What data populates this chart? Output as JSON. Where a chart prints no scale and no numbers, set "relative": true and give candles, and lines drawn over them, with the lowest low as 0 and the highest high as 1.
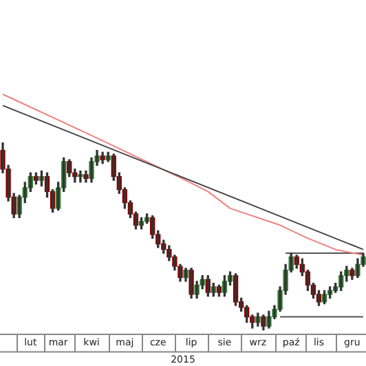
{
  "chart_data": {
    "type": "candlestick",
    "relative": true,
    "xlabel": "2015",
    "marker": "none",
    "color": "#333333",
    "categories": [
      null,
      null,
      null,
      null,
      null,
      "lut",
      null,
      null,
      null,
      null,
      "mar",
      null,
      null,
      null,
      null,
      null,
      "kwi",
      null,
      null,
      null,
      null,
      null,
      "maj",
      null,
      null,
      null,
      null,
      null,
      "cze",
      null,
      null,
      null,
      null,
      null,
      "lip",
      null,
      null,
      null,
      null,
      null,
      "sie",
      null,
      null,
      null,
      null,
      null,
      "wrz",
      null,
      null,
      null,
      null,
      null,
      "paź",
      null,
      null,
      null,
      null,
      "lis",
      null,
      null,
      null,
      null,
      null,
      "gru",
      null,
      null
    ],
    "ohlc": [
      [
        0.96,
        1.0,
        0.84,
        0.86
      ],
      [
        0.86,
        0.88,
        0.69,
        0.71
      ],
      [
        0.71,
        0.73,
        0.6,
        0.62
      ],
      [
        0.62,
        0.72,
        0.6,
        0.71
      ],
      [
        0.71,
        0.79,
        0.68,
        0.76
      ],
      [
        0.76,
        0.84,
        0.74,
        0.82
      ],
      [
        0.82,
        0.84,
        0.78,
        0.8
      ],
      [
        0.8,
        0.85,
        0.77,
        0.82
      ],
      [
        0.82,
        0.84,
        0.71,
        0.74
      ],
      [
        0.74,
        0.75,
        0.63,
        0.65
      ],
      [
        0.65,
        0.79,
        0.64,
        0.76
      ],
      [
        0.76,
        0.92,
        0.74,
        0.9
      ],
      [
        0.9,
        0.91,
        0.82,
        0.84
      ],
      [
        0.84,
        0.86,
        0.79,
        0.82
      ],
      [
        0.82,
        0.85,
        0.79,
        0.83
      ],
      [
        0.83,
        0.85,
        0.79,
        0.81
      ],
      [
        0.81,
        0.92,
        0.79,
        0.9
      ],
      [
        0.9,
        0.96,
        0.88,
        0.93
      ],
      [
        0.93,
        0.95,
        0.89,
        0.91
      ],
      [
        0.91,
        0.95,
        0.9,
        0.93
      ],
      [
        0.93,
        0.94,
        0.8,
        0.82
      ],
      [
        0.82,
        0.84,
        0.73,
        0.75
      ],
      [
        0.75,
        0.76,
        0.65,
        0.68
      ],
      [
        0.68,
        0.69,
        0.6,
        0.62
      ],
      [
        0.62,
        0.63,
        0.54,
        0.56
      ],
      [
        0.56,
        0.6,
        0.54,
        0.58
      ],
      [
        0.58,
        0.62,
        0.57,
        0.6
      ],
      [
        0.6,
        0.61,
        0.49,
        0.51
      ],
      [
        0.51,
        0.53,
        0.44,
        0.46
      ],
      [
        0.46,
        0.48,
        0.41,
        0.43
      ],
      [
        0.43,
        0.45,
        0.37,
        0.39
      ],
      [
        0.39,
        0.4,
        0.32,
        0.34
      ],
      [
        0.34,
        0.35,
        0.26,
        0.28
      ],
      [
        0.28,
        0.33,
        0.26,
        0.32
      ],
      [
        0.32,
        0.33,
        0.17,
        0.19
      ],
      [
        0.19,
        0.26,
        0.17,
        0.24
      ],
      [
        0.24,
        0.29,
        0.22,
        0.27
      ],
      [
        0.27,
        0.29,
        0.18,
        0.2
      ],
      [
        0.2,
        0.25,
        0.18,
        0.23
      ],
      [
        0.23,
        0.24,
        0.18,
        0.2
      ],
      [
        0.2,
        0.29,
        0.18,
        0.26
      ],
      [
        0.26,
        0.31,
        0.24,
        0.29
      ],
      [
        0.29,
        0.3,
        0.13,
        0.15
      ],
      [
        0.15,
        0.17,
        0.1,
        0.12
      ],
      [
        0.12,
        0.13,
        0.04,
        0.07
      ],
      [
        0.07,
        0.08,
        0.01,
        0.04
      ],
      [
        0.04,
        0.09,
        0.02,
        0.07
      ],
      [
        0.07,
        0.08,
        0.0,
        0.02
      ],
      [
        0.02,
        0.1,
        0.01,
        0.07
      ],
      [
        0.07,
        0.13,
        0.06,
        0.11
      ],
      [
        0.11,
        0.23,
        0.1,
        0.21
      ],
      [
        0.21,
        0.35,
        0.19,
        0.32
      ],
      [
        0.32,
        0.41,
        0.31,
        0.39
      ],
      [
        0.39,
        0.4,
        0.33,
        0.35
      ],
      [
        0.35,
        0.38,
        0.29,
        0.31
      ],
      [
        0.31,
        0.32,
        0.21,
        0.24
      ],
      [
        0.24,
        0.25,
        0.17,
        0.19
      ],
      [
        0.19,
        0.21,
        0.13,
        0.15
      ],
      [
        0.15,
        0.21,
        0.14,
        0.19
      ],
      [
        0.19,
        0.23,
        0.17,
        0.21
      ],
      [
        0.21,
        0.25,
        0.2,
        0.23
      ],
      [
        0.23,
        0.31,
        0.21,
        0.29
      ],
      [
        0.29,
        0.34,
        0.26,
        0.32
      ],
      [
        0.32,
        0.33,
        0.27,
        0.29
      ],
      [
        0.29,
        0.38,
        0.28,
        0.35
      ],
      [
        0.35,
        0.41,
        0.34,
        0.39
      ]
    ],
    "colors": [
      "#8b0000",
      "#8b0000",
      "#8b0000",
      "#2e7d32",
      "#2e7d32",
      "#2e7d32",
      "#8b0000",
      "#2e7d32",
      "#8b0000",
      "#8b0000",
      "#2e7d32",
      "#2e7d32",
      "#8b0000",
      "#8b0000",
      "#2e7d32",
      "#8b0000",
      "#2e7d32",
      "#2e7d32",
      "#8b0000",
      "#2e7d32",
      "#8b0000",
      "#8b0000",
      "#8b0000",
      "#8b0000",
      "#8b0000",
      "#2e7d32",
      "#2e7d32",
      "#8b0000",
      "#8b0000",
      "#8b0000",
      "#8b0000",
      "#8b0000",
      "#8b0000",
      "#2e7d32",
      "#8b0000",
      "#2e7d32",
      "#2e7d32",
      "#8b0000",
      "#2e7d32",
      "#8b0000",
      "#2e7d32",
      "#2e7d32",
      "#8b0000",
      "#8b0000",
      "#8b0000",
      "#8b0000",
      "#2e7d32",
      "#8b0000",
      "#2e7d32",
      "#2e7d32",
      "#2e7d32",
      "#2e7d32",
      "#2e7d32",
      "#8b0000",
      "#8b0000",
      "#8b0000",
      "#8b0000",
      "#8b0000",
      "#2e7d32",
      "#2e7d32",
      "#2e7d32",
      "#2e7d32",
      "#2e7d32",
      "#8b0000",
      "#2e7d32",
      "#2e7d32"
    ],
    "series": [
      {
        "type": "line",
        "color": "#444444",
        "values": [
          1.2,
          null,
          null,
          null,
          null,
          null,
          null,
          null,
          null,
          null,
          null,
          null,
          null,
          null,
          null,
          null,
          null,
          null,
          null,
          null,
          null,
          null,
          null,
          null,
          null,
          null,
          null,
          null,
          null,
          null,
          null,
          null,
          null,
          null,
          null,
          null,
          null,
          null,
          null,
          null,
          null,
          null,
          null,
          null,
          null,
          null,
          null,
          null,
          null,
          null,
          null,
          null,
          null,
          null,
          null,
          null,
          null,
          null,
          null,
          null,
          null,
          null,
          null,
          null,
          null,
          0.43
        ]
      },
      {
        "type": "line",
        "color": "#f08080",
        "values": [
          1.26,
          null,
          null,
          null,
          null,
          null,
          null,
          null,
          null,
          null,
          null,
          null,
          null,
          null,
          null,
          null,
          1.04,
          null,
          null,
          null,
          null,
          null,
          null,
          null,
          null,
          null,
          null,
          null,
          null,
          null,
          null,
          null,
          null,
          0.8,
          null,
          null,
          null,
          0.74,
          null,
          null,
          null,
          0.65,
          null,
          null,
          null,
          null,
          null,
          null,
          null,
          null,
          0.56,
          null,
          null,
          null,
          null,
          0.49,
          null,
          null,
          null,
          null,
          0.43,
          null,
          null,
          null,
          null,
          0.4
        ]
      },
      {
        "type": "line",
        "color": "#555555",
        "values": [
          null,
          null,
          null,
          null,
          null,
          null,
          null,
          null,
          null,
          null,
          null,
          null,
          null,
          null,
          null,
          null,
          null,
          null,
          null,
          null,
          null,
          null,
          null,
          null,
          null,
          null,
          null,
          null,
          null,
          null,
          null,
          null,
          null,
          null,
          null,
          null,
          null,
          null,
          null,
          null,
          null,
          null,
          null,
          null,
          null,
          null,
          null,
          null,
          null,
          null,
          null,
          0.41,
          null,
          null,
          null,
          null,
          null,
          null,
          null,
          null,
          null,
          null,
          null,
          null,
          null,
          0.41
        ]
      },
      {
        "type": "line",
        "color": "#555555",
        "values": [
          null,
          null,
          null,
          null,
          null,
          null,
          null,
          null,
          null,
          null,
          null,
          null,
          null,
          null,
          null,
          null,
          null,
          null,
          null,
          null,
          null,
          null,
          null,
          null,
          null,
          null,
          null,
          null,
          null,
          null,
          null,
          null,
          null,
          null,
          null,
          null,
          null,
          null,
          null,
          null,
          null,
          null,
          null,
          null,
          null,
          null,
          null,
          null,
          null,
          null,
          0.07,
          null,
          null,
          null,
          null,
          null,
          null,
          null,
          null,
          null,
          null,
          null,
          null,
          null,
          null,
          0.07
        ]
      }
    ]
  }
}
